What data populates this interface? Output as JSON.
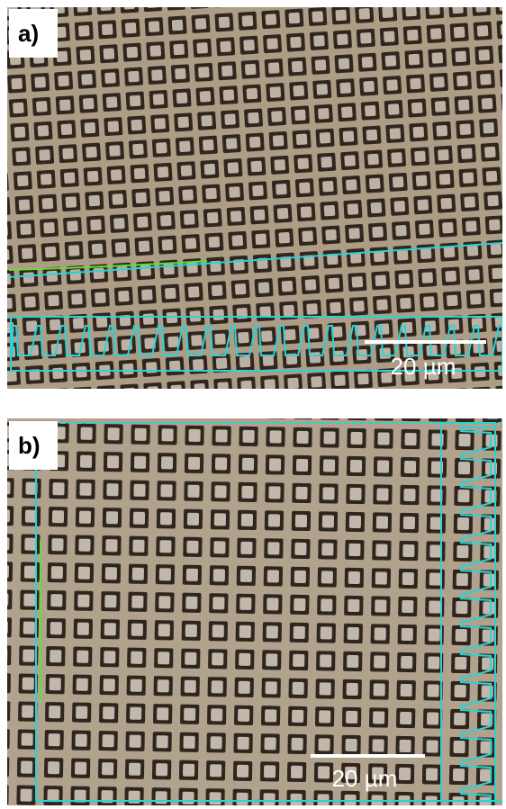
{
  "panels": [
    {
      "label": "a)",
      "scale_bar": "20 µm"
    },
    {
      "label": "b)",
      "scale_bar": "20 µm"
    }
  ]
}
